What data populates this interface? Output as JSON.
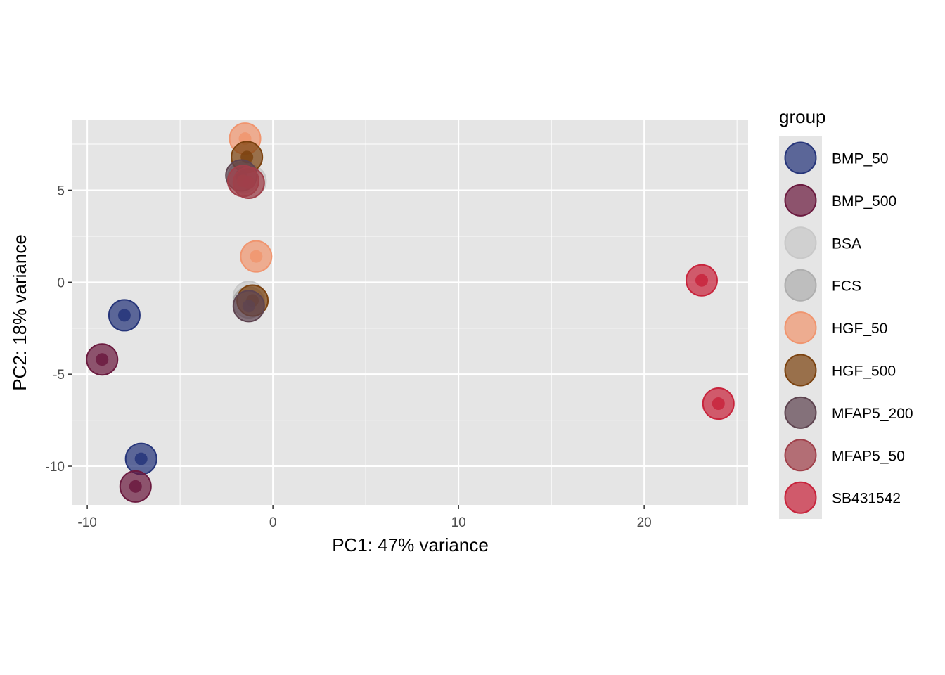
{
  "chart_data": {
    "type": "scatter",
    "xlabel": "PC1: 47% variance",
    "ylabel": "PC2: 18% variance",
    "xlim": [
      -10.8,
      25.6
    ],
    "ylim": [
      -12.1,
      8.8
    ],
    "x_ticks": [
      -10,
      0,
      10,
      20
    ],
    "x_tick_labels": [
      "-10",
      "0",
      "10",
      "20"
    ],
    "y_ticks": [
      -10,
      -5,
      0,
      5
    ],
    "y_tick_labels": [
      "-10",
      "-5",
      "0",
      "5"
    ],
    "grid": true,
    "legend_title": "group",
    "legend_position": "right",
    "series": [
      {
        "name": "BMP_50",
        "color": "#26357A",
        "points": [
          {
            "x": -8.0,
            "y": -1.8
          },
          {
            "x": -7.1,
            "y": -9.6
          }
        ]
      },
      {
        "name": "BMP_500",
        "color": "#6B1A3F",
        "points": [
          {
            "x": -9.2,
            "y": -4.2
          },
          {
            "x": -7.4,
            "y": -11.1
          }
        ]
      },
      {
        "name": "BSA",
        "color": "#C8C8C8",
        "points": [
          {
            "x": -1.2,
            "y": 5.5
          },
          {
            "x": -1.3,
            "y": -0.8
          }
        ]
      },
      {
        "name": "FCS",
        "color": "#AEAEAE",
        "points": [
          {
            "x": -1.6,
            "y": 5.7
          },
          {
            "x": -1.3,
            "y": -1.1
          }
        ]
      },
      {
        "name": "HGF_50",
        "color": "#F0956F",
        "points": [
          {
            "x": -1.5,
            "y": 7.8
          },
          {
            "x": -0.9,
            "y": 1.4
          }
        ]
      },
      {
        "name": "HGF_500",
        "color": "#7B420F",
        "points": [
          {
            "x": -1.4,
            "y": 6.8
          },
          {
            "x": -1.1,
            "y": -1.0
          }
        ]
      },
      {
        "name": "MFAP5_200",
        "color": "#5E4450",
        "points": [
          {
            "x": -1.7,
            "y": 5.8
          },
          {
            "x": -1.3,
            "y": -1.3
          }
        ]
      },
      {
        "name": "MFAP5_50",
        "color": "#A0404A",
        "points": [
          {
            "x": -1.6,
            "y": 5.5
          },
          {
            "x": -1.3,
            "y": 5.4
          }
        ]
      },
      {
        "name": "SB431542",
        "color": "#C8243C",
        "points": [
          {
            "x": 23.1,
            "y": 0.1
          },
          {
            "x": 24.0,
            "y": -6.6
          }
        ]
      }
    ]
  }
}
